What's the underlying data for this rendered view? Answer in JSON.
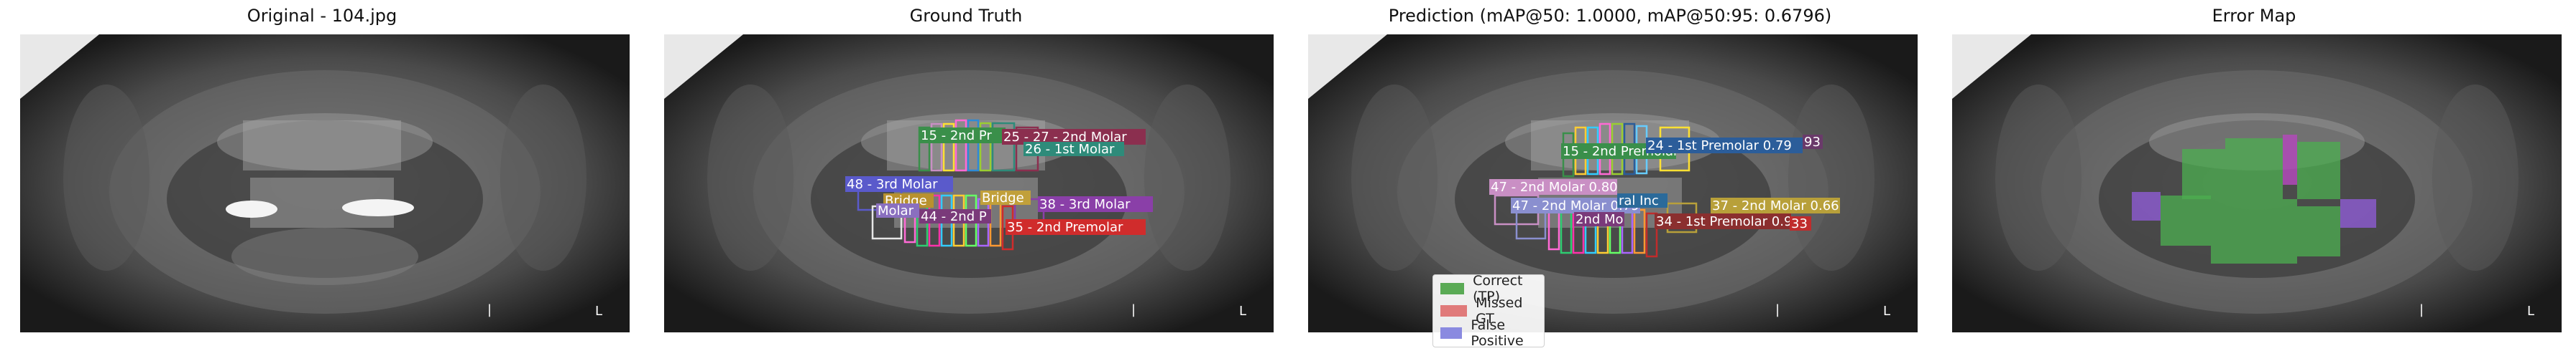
{
  "panels": [
    {
      "title": "Original - 104.jpg"
    },
    {
      "title": "Ground Truth"
    },
    {
      "title": "Prediction (mAP@50: 1.0000, mAP@50:95: 0.6796)"
    },
    {
      "title": "Error Map"
    }
  ],
  "image_marks": {
    "mark_right": "L",
    "mark_left": "|"
  },
  "ground_truth_labels": [
    {
      "text": "15 - 2nd Pr",
      "color": "#3a8f4a"
    },
    {
      "text": "25 - 27 - 2nd Molar",
      "color": "#8b2f4f"
    },
    {
      "text": "26 - 1st Molar",
      "color": "#2e8b7a"
    },
    {
      "text": "48 - 3rd Molar",
      "color": "#5a5acb"
    },
    {
      "text": "Bridge",
      "color": "#b8912e"
    },
    {
      "text": "Bridge",
      "color": "#c1a03a"
    },
    {
      "text": "38 - 3rd Molar",
      "color": "#8a3fa8"
    },
    {
      "text": "35 - 2nd Premolar",
      "color": "#d02c2c"
    },
    {
      "text": "44 - 2nd P",
      "color": "#7a3a7a"
    },
    {
      "text": "Molar",
      "color": "#8a6fbf"
    }
  ],
  "prediction_labels": [
    {
      "text": "15 - 2nd Premolar",
      "color": "#3a8f4a"
    },
    {
      "text": "24 - 1st Premolar 0.79",
      "color": "#2b5d9a"
    },
    {
      "text": "47 - 2nd Molar 0.80",
      "color": "#c98fc4"
    },
    {
      "text": "37 - 2nd Molar 0.66",
      "color": "#b8a03a"
    },
    {
      "text": "47 - 2nd Molar 0.79",
      "color": "#8a8fcf"
    },
    {
      "text": "34 - 1st Premolar 0.90",
      "color": "#8b2f2f"
    },
    {
      "text": "ral Inc",
      "color": "#2b6a9a"
    },
    {
      "text": "2nd Mo",
      "color": "#7a3a7a"
    },
    {
      "text": "33",
      "color": "#c02c2c"
    },
    {
      "text": "93",
      "color": "#6a3a6a"
    }
  ],
  "legend": [
    {
      "label": "Correct (TP)",
      "color": "#5aaa55"
    },
    {
      "label": "Missed GT",
      "color": "#e07a7a"
    },
    {
      "label": "False Positive",
      "color": "#8a8ae0"
    }
  ]
}
